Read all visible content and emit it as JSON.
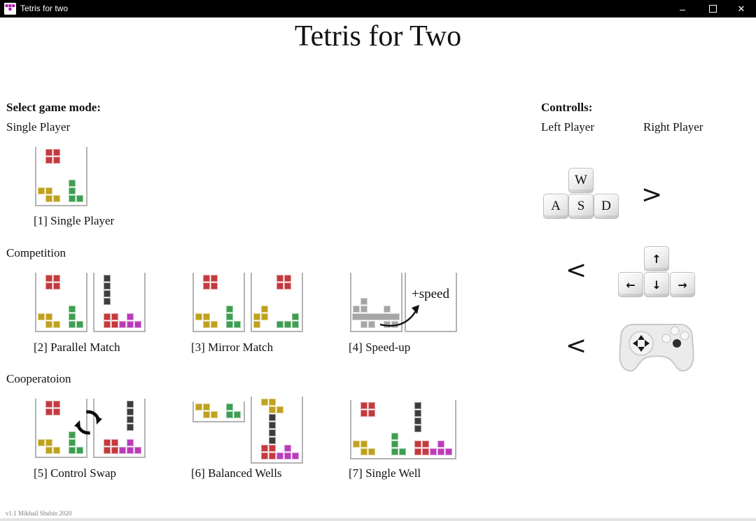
{
  "window": {
    "title": "Tetris for two",
    "minimize": "–",
    "close": "✕"
  },
  "page": {
    "title": "Tetris for Two",
    "version": "v1.1 Mikhail Shubin 2020"
  },
  "colors": {
    "red": "#c43a3e",
    "yellow": "#bfa11c",
    "green": "#3e9e51",
    "magenta": "#ba3cba",
    "dark": "#3d3d3d",
    "gray": "#a6a6a6",
    "icon_magenta": "#a818a8",
    "well_border": "#b3b3b3"
  },
  "mode_section": {
    "heading": "Select game mode:",
    "groups": [
      {
        "label": "Single Player",
        "modes": [
          {
            "key": "1",
            "caption": "[1] Single Player"
          }
        ]
      },
      {
        "label": "Competition",
        "modes": [
          {
            "key": "2",
            "caption": "[2] Parallel Match"
          },
          {
            "key": "3",
            "caption": "[3] Mirror Match"
          },
          {
            "key": "4",
            "caption": "[4] Speed-up",
            "annotation": "+speed"
          }
        ]
      },
      {
        "label": "Cooperatoion",
        "modes": [
          {
            "key": "5",
            "caption": "[5] Control Swap"
          },
          {
            "key": "6",
            "caption": "[6] Balanced Wells"
          },
          {
            "key": "7",
            "caption": "[7] Single Well"
          }
        ]
      }
    ]
  },
  "controls_section": {
    "heading": "Controlls:",
    "left_column": "Left Player",
    "right_column": "Right Player",
    "greater": ">",
    "less": "<",
    "wasd": {
      "w": "W",
      "a": "A",
      "s": "S",
      "d": "D"
    },
    "arrows": {
      "up": "↑",
      "left": "←",
      "down": "↓",
      "right": "→"
    }
  },
  "wells": {
    "standard": {
      "cols": 6,
      "rows": 7,
      "cell": 11,
      "pieces": [
        {
          "color": "red",
          "cells": [
            [
              1,
              0
            ],
            [
              2,
              0
            ],
            [
              1,
              1
            ],
            [
              2,
              1
            ]
          ]
        },
        {
          "color": "yellow",
          "cells": [
            [
              0,
              5
            ],
            [
              1,
              5
            ],
            [
              1,
              6
            ],
            [
              2,
              6
            ]
          ]
        },
        {
          "color": "green",
          "cells": [
            [
              4,
              4
            ],
            [
              4,
              5
            ],
            [
              4,
              6
            ],
            [
              5,
              6
            ]
          ]
        }
      ]
    },
    "opp_left": {
      "cols": 6,
      "rows": 7,
      "cell": 11,
      "pieces": [
        {
          "color": "dark",
          "cells": [
            [
              1,
              0
            ],
            [
              1,
              1
            ],
            [
              1,
              2
            ],
            [
              1,
              3
            ]
          ]
        },
        {
          "color": "red",
          "cells": [
            [
              1,
              5
            ],
            [
              2,
              5
            ],
            [
              1,
              6
            ],
            [
              2,
              6
            ]
          ]
        },
        {
          "color": "magenta",
          "cells": [
            [
              4,
              5
            ],
            [
              3,
              6
            ],
            [
              4,
              6
            ],
            [
              5,
              6
            ]
          ]
        }
      ]
    },
    "mirror": {
      "cols": 6,
      "rows": 7,
      "cell": 11,
      "pieces": [
        {
          "color": "red",
          "cells": [
            [
              3,
              0
            ],
            [
              4,
              0
            ],
            [
              3,
              1
            ],
            [
              4,
              1
            ]
          ]
        },
        {
          "color": "yellow",
          "cells": [
            [
              1,
              4
            ],
            [
              0,
              5
            ],
            [
              1,
              5
            ],
            [
              0,
              6
            ]
          ]
        },
        {
          "color": "green",
          "cells": [
            [
              5,
              5
            ],
            [
              3,
              6
            ],
            [
              4,
              6
            ],
            [
              5,
              6
            ]
          ]
        }
      ]
    },
    "speed_left": {
      "cols": 6,
      "rows": 7,
      "cell": 11,
      "pieces": [
        {
          "color": "gray",
          "cells": [
            [
              1,
              3
            ]
          ]
        },
        {
          "color": "gray",
          "cells": [
            [
              0,
              4
            ],
            [
              1,
              4
            ],
            [
              4,
              4
            ]
          ]
        },
        {
          "color": "gray",
          "bar_row": 5
        },
        {
          "color": "gray",
          "cells": [
            [
              1,
              6
            ],
            [
              2,
              6
            ],
            [
              4,
              6
            ],
            [
              5,
              6
            ]
          ]
        }
      ]
    },
    "speed_right": {
      "cols": 6,
      "rows": 7,
      "cell": 11,
      "pieces": []
    },
    "opp_right": {
      "cols": 6,
      "rows": 7,
      "cell": 11,
      "pieces": [
        {
          "color": "dark",
          "cells": [
            [
              4,
              0
            ],
            [
              4,
              1
            ],
            [
              4,
              2
            ],
            [
              4,
              3
            ]
          ]
        },
        {
          "color": "red",
          "cells": [
            [
              1,
              5
            ],
            [
              2,
              5
            ],
            [
              1,
              6
            ],
            [
              2,
              6
            ]
          ]
        },
        {
          "color": "magenta",
          "cells": [
            [
              4,
              5
            ],
            [
              3,
              6
            ],
            [
              4,
              6
            ],
            [
              5,
              6
            ]
          ]
        }
      ]
    },
    "shallow": {
      "cols": 6,
      "rows": 2,
      "cell": 11,
      "pieces": [
        {
          "color": "yellow",
          "cells": [
            [
              0,
              0
            ],
            [
              1,
              0
            ],
            [
              1,
              1
            ],
            [
              2,
              1
            ]
          ]
        },
        {
          "color": "green",
          "cells": [
            [
              4,
              0
            ],
            [
              4,
              1
            ],
            [
              5,
              1
            ]
          ]
        }
      ]
    },
    "tall": {
      "cols": 6,
      "rows": 8,
      "cell": 11,
      "pieces": [
        {
          "color": "yellow",
          "cells": [
            [
              1,
              0
            ],
            [
              2,
              0
            ],
            [
              2,
              1
            ],
            [
              3,
              1
            ]
          ]
        },
        {
          "color": "dark",
          "cells": [
            [
              2,
              2
            ],
            [
              2,
              3
            ],
            [
              2,
              4
            ],
            [
              2,
              5
            ]
          ]
        },
        {
          "color": "red",
          "cells": [
            [
              1,
              6
            ],
            [
              2,
              6
            ],
            [
              1,
              7
            ],
            [
              2,
              7
            ]
          ]
        },
        {
          "color": "magenta",
          "cells": [
            [
              4,
              6
            ],
            [
              3,
              7
            ],
            [
              4,
              7
            ],
            [
              5,
              7
            ]
          ]
        }
      ]
    },
    "wide": {
      "cols": 13,
      "rows": 7,
      "cell": 11,
      "pieces": [
        {
          "color": "red",
          "cells": [
            [
              1,
              0
            ],
            [
              2,
              0
            ],
            [
              1,
              1
            ],
            [
              2,
              1
            ]
          ]
        },
        {
          "color": "dark",
          "cells": [
            [
              8,
              0
            ],
            [
              8,
              1
            ],
            [
              8,
              2
            ],
            [
              8,
              3
            ]
          ]
        },
        {
          "color": "yellow",
          "cells": [
            [
              0,
              5
            ],
            [
              1,
              5
            ],
            [
              1,
              6
            ],
            [
              2,
              6
            ]
          ]
        },
        {
          "color": "green",
          "cells": [
            [
              5,
              4
            ],
            [
              5,
              5
            ],
            [
              5,
              6
            ],
            [
              6,
              6
            ]
          ]
        },
        {
          "color": "red",
          "cells": [
            [
              8,
              5
            ],
            [
              9,
              5
            ],
            [
              8,
              6
            ],
            [
              9,
              6
            ]
          ]
        },
        {
          "color": "magenta",
          "cells": [
            [
              11,
              5
            ],
            [
              10,
              6
            ],
            [
              11,
              6
            ],
            [
              12,
              6
            ]
          ]
        }
      ]
    }
  }
}
